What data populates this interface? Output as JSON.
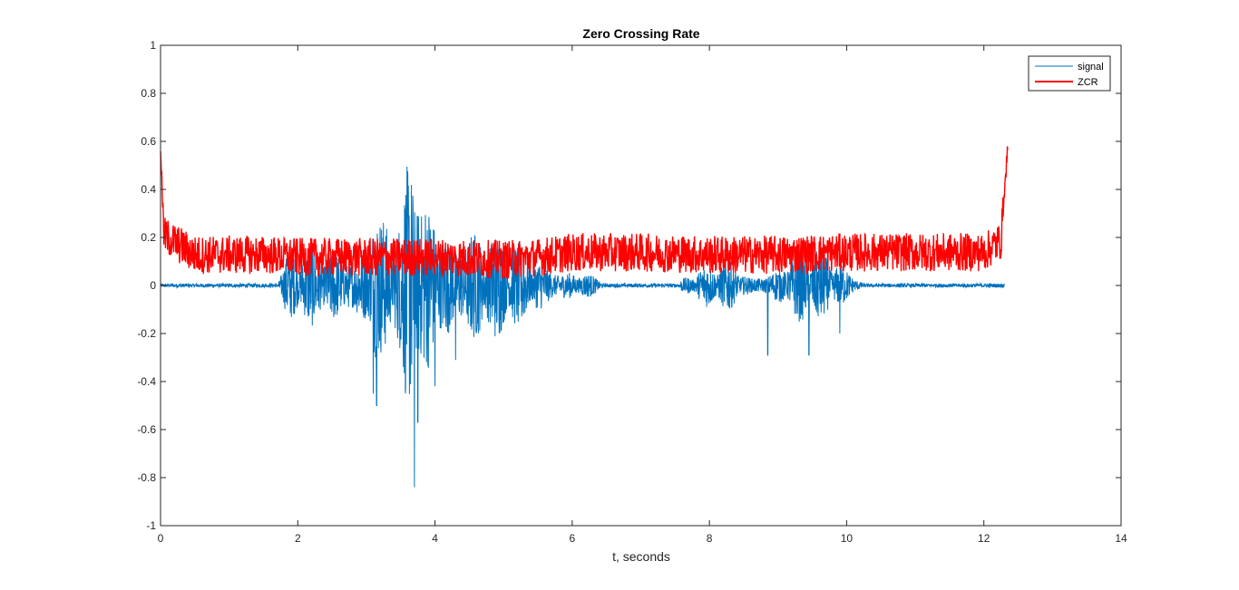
{
  "chart_data": {
    "type": "line",
    "title": "Zero Crossing Rate",
    "xlabel": "t, seconds",
    "ylabel": "",
    "xlim": [
      0,
      14
    ],
    "ylim": [
      -1,
      1
    ],
    "xticks": [
      0,
      2,
      4,
      6,
      8,
      10,
      12,
      14
    ],
    "yticks": [
      -1,
      -0.8,
      -0.6,
      -0.4,
      -0.2,
      0,
      0.2,
      0.4,
      0.6,
      0.8,
      1
    ],
    "xtick_labels": [
      "0",
      "2",
      "4",
      "6",
      "8",
      "10",
      "12",
      "14"
    ],
    "ytick_labels": [
      "-1",
      "-0.8",
      "-0.6",
      "-0.4",
      "-0.2",
      "0",
      "0.2",
      "0.4",
      "0.6",
      "0.8",
      "1"
    ],
    "grid": false,
    "legend_position": "top-right",
    "series": [
      {
        "name": "signal",
        "color": "#0072BD",
        "style": "thin waveform",
        "envelope_points": [
          [
            0.0,
            0.0
          ],
          [
            1.7,
            0.01
          ],
          [
            1.85,
            0.15
          ],
          [
            2.2,
            0.18
          ],
          [
            2.6,
            0.22
          ],
          [
            3.0,
            0.3
          ],
          [
            3.1,
            0.5
          ],
          [
            3.2,
            0.35
          ],
          [
            3.5,
            0.3
          ],
          [
            3.7,
            0.8
          ],
          [
            3.8,
            0.4
          ],
          [
            4.0,
            0.45
          ],
          [
            4.4,
            0.38
          ],
          [
            4.8,
            0.25
          ],
          [
            5.3,
            0.18
          ],
          [
            5.8,
            0.12
          ],
          [
            6.5,
            0.02
          ],
          [
            7.5,
            0.02
          ],
          [
            8.0,
            0.1
          ],
          [
            8.3,
            0.12
          ],
          [
            8.6,
            0.05
          ],
          [
            8.9,
            0.1
          ],
          [
            9.4,
            0.18
          ],
          [
            9.9,
            0.12
          ],
          [
            10.3,
            0.01
          ],
          [
            12.3,
            0.0
          ]
        ],
        "negative_peaks": [
          [
            3.1,
            -0.45
          ],
          [
            3.15,
            -0.5
          ],
          [
            3.7,
            -0.84
          ],
          [
            3.75,
            -0.57
          ],
          [
            4.0,
            -0.42
          ],
          [
            4.3,
            -0.31
          ],
          [
            8.85,
            -0.29
          ],
          [
            9.45,
            -0.29
          ],
          [
            9.9,
            -0.2
          ]
        ]
      },
      {
        "name": "ZCR",
        "color": "#FF0000",
        "style": "thick noisy line",
        "envelope_points": [
          [
            0.0,
            0.58
          ],
          [
            0.05,
            0.2
          ],
          [
            0.5,
            0.12
          ],
          [
            1.5,
            0.12
          ],
          [
            2.0,
            0.11
          ],
          [
            3.0,
            0.11
          ],
          [
            4.0,
            0.11
          ],
          [
            5.0,
            0.1
          ],
          [
            5.5,
            0.11
          ],
          [
            6.0,
            0.13
          ],
          [
            7.0,
            0.13
          ],
          [
            8.0,
            0.12
          ],
          [
            9.0,
            0.12
          ],
          [
            10.0,
            0.13
          ],
          [
            11.0,
            0.13
          ],
          [
            12.0,
            0.13
          ],
          [
            12.25,
            0.18
          ],
          [
            12.35,
            0.58
          ]
        ]
      }
    ]
  }
}
